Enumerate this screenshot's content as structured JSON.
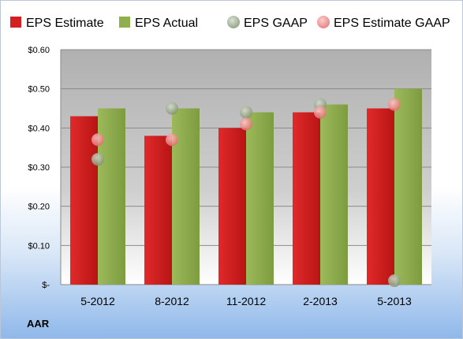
{
  "chart_data": {
    "type": "bar",
    "categories": [
      "5-2012",
      "8-2012",
      "11-2012",
      "2-2013",
      "5-2013"
    ],
    "series": [
      {
        "name": "EPS Estimate",
        "kind": "bar",
        "color": "#d42020",
        "values": [
          0.43,
          0.38,
          0.4,
          0.44,
          0.45
        ]
      },
      {
        "name": "EPS Actual",
        "kind": "bar",
        "color": "#8fae4e",
        "values": [
          0.45,
          0.45,
          0.44,
          0.46,
          0.5
        ]
      },
      {
        "name": "EPS GAAP",
        "kind": "marker",
        "color": "#9aaa8a",
        "values": [
          0.32,
          0.45,
          0.44,
          0.46,
          0.01
        ]
      },
      {
        "name": "EPS Estimate GAAP",
        "kind": "marker",
        "color": "#f08a8a",
        "values": [
          0.37,
          0.37,
          0.41,
          0.44,
          0.46
        ]
      }
    ],
    "y_ticks": [
      "$-",
      "$0.10",
      "$0.20",
      "$0.30",
      "$0.40",
      "$0.50",
      "$0.60"
    ],
    "ylim": [
      0,
      0.6
    ],
    "grid": true,
    "legend": "top"
  },
  "company_label": "AAR"
}
